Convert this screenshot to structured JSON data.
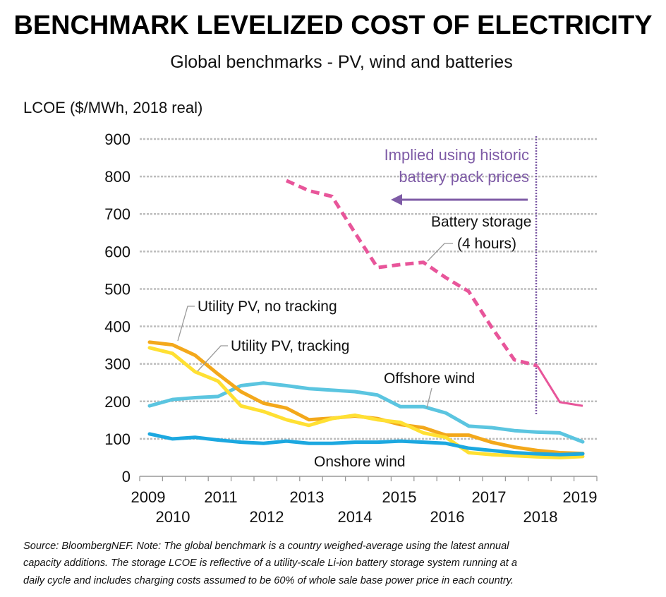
{
  "title": "BENCHMARK LEVELIZED COST OF ELECTRICITY",
  "subtitle": "Global benchmarks - PV, wind and batteries",
  "footnote": [
    "Source: BloombergNEF. Note: The global benchmark is a country weighed-average using the latest annual",
    "capacity additions. The storage LCOE is reflective of a utility-scale Li-ion battery storage system running at a",
    "daily cycle and includes charging costs assumed to be 60% of whole sale base power price in each country."
  ],
  "chart_data": {
    "type": "line",
    "title": "BENCHMARK LEVELIZED COST OF ELECTRICITY",
    "subtitle": "Global benchmarks - PV, wind and batteries",
    "ylabel": "LCOE ($/MWh, 2018 real)",
    "xlabel": "",
    "ylim": [
      0,
      900
    ],
    "yticks": [
      0,
      100,
      200,
      300,
      400,
      500,
      600,
      700,
      800,
      900
    ],
    "xlim": [
      2009,
      2019
    ],
    "xtick_labels": [
      "2009",
      "2010",
      "2011",
      "2012",
      "2013",
      "2014",
      "2015",
      "2016",
      "2017",
      "2018",
      "2019"
    ],
    "grid": "horizontal dashed",
    "x": [
      2009.0,
      2009.53,
      2010.05,
      2010.58,
      2011.11,
      2011.63,
      2012.16,
      2012.68,
      2013.21,
      2013.74,
      2014.26,
      2014.79,
      2015.32,
      2015.84,
      2016.37,
      2016.89,
      2017.42,
      2017.95,
      2018.47,
      2019.0
    ],
    "series": [
      {
        "name": "Battery storage (4 hours)",
        "color": "#E8559A",
        "values": [
          null,
          null,
          null,
          null,
          null,
          null,
          789,
          762,
          747,
          650,
          557,
          565,
          571,
          530,
          493,
          399,
          311,
          295,
          198,
          188
        ],
        "dashed_until_index": 17
      },
      {
        "name": "Offshore wind",
        "color": "#5BC5E0",
        "values": [
          188,
          205,
          210,
          213,
          242,
          249,
          242,
          234,
          230,
          226,
          217,
          186,
          186,
          169,
          134,
          130,
          122,
          118,
          116,
          92
        ]
      },
      {
        "name": "Utility PV, no tracking",
        "color": "#F3A81B",
        "values": [
          358,
          351,
          323,
          273,
          226,
          195,
          182,
          151,
          155,
          161,
          154,
          138,
          130,
          110,
          110,
          91,
          78,
          69,
          63,
          61
        ]
      },
      {
        "name": "Utility PV, tracking",
        "color": "#FFE033",
        "values": [
          343,
          328,
          279,
          254,
          188,
          173,
          151,
          136,
          154,
          163,
          151,
          144,
          116,
          104,
          63,
          58,
          55,
          52,
          50,
          53
        ]
      },
      {
        "name": "Onshore wind",
        "color": "#1CA8E0",
        "values": [
          113,
          100,
          104,
          97,
          91,
          88,
          94,
          88,
          88,
          91,
          91,
          94,
          91,
          88,
          75,
          69,
          63,
          60,
          58,
          60
        ]
      }
    ],
    "annotations": {
      "implied_line1": "Implied using historic",
      "implied_line2": "battery pack prices",
      "implied_color": "#7E5BA6",
      "implied_boundary_x": 2017.95,
      "battery_label1": "Battery storage",
      "battery_label2": "(4 hours)",
      "pv_no_tracking": "Utility PV, no tracking",
      "pv_tracking": "Utility PV, tracking",
      "offshore": "Offshore wind",
      "onshore": "Onshore wind"
    }
  }
}
